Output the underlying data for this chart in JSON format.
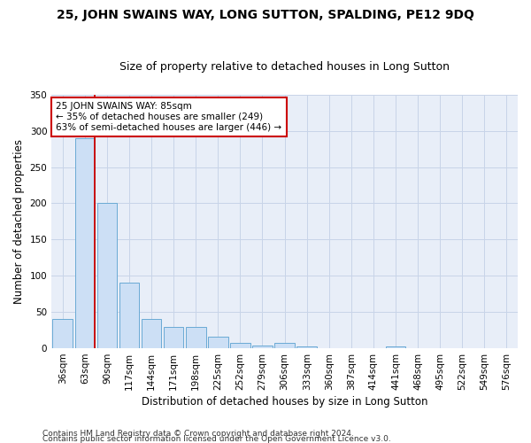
{
  "title": "25, JOHN SWAINS WAY, LONG SUTTON, SPALDING, PE12 9DQ",
  "subtitle": "Size of property relative to detached houses in Long Sutton",
  "xlabel": "Distribution of detached houses by size in Long Sutton",
  "ylabel": "Number of detached properties",
  "footnote1": "Contains HM Land Registry data © Crown copyright and database right 2024.",
  "footnote2": "Contains public sector information licensed under the Open Government Licence v3.0.",
  "bar_color": "#ccdff5",
  "bar_edge_color": "#6aaad4",
  "annotation_box_color": "#ffffff",
  "annotation_border_color": "#cc0000",
  "vline_color": "#cc0000",
  "grid_color": "#c8d4e8",
  "background_color": "#e8eef8",
  "categories": [
    "36sqm",
    "63sqm",
    "90sqm",
    "117sqm",
    "144sqm",
    "171sqm",
    "198sqm",
    "225sqm",
    "252sqm",
    "279sqm",
    "306sqm",
    "333sqm",
    "360sqm",
    "387sqm",
    "414sqm",
    "441sqm",
    "468sqm",
    "495sqm",
    "522sqm",
    "549sqm",
    "576sqm"
  ],
  "values": [
    40,
    290,
    200,
    90,
    40,
    30,
    30,
    16,
    8,
    4,
    8,
    3,
    0,
    0,
    0,
    3,
    0,
    0,
    0,
    0,
    0
  ],
  "property_label": "25 JOHN SWAINS WAY: 85sqm",
  "pct_smaller": 35,
  "n_smaller": 249,
  "pct_larger_semi": 63,
  "n_larger_semi": 446,
  "vline_index": 1,
  "ylim": [
    0,
    350
  ],
  "yticks": [
    0,
    50,
    100,
    150,
    200,
    250,
    300,
    350
  ],
  "title_fontsize": 10,
  "subtitle_fontsize": 9,
  "axis_label_fontsize": 8.5,
  "tick_fontsize": 7.5,
  "annotation_fontsize": 7.5,
  "footnote_fontsize": 6.5
}
